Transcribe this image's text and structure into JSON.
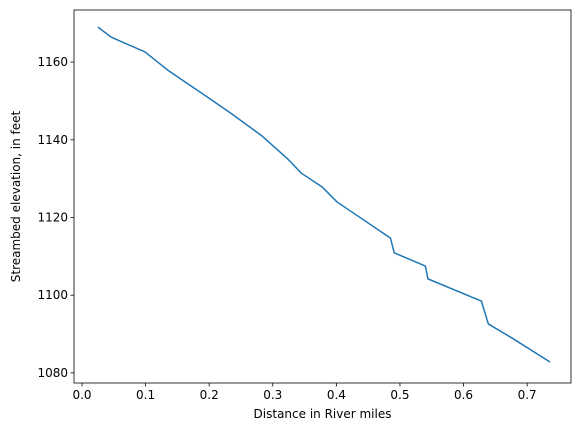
{
  "chart_data": {
    "type": "line",
    "x_label": "Distance in River miles",
    "y_label": "Streambed elevation, in feet",
    "x": [
      0.025,
      0.046,
      0.099,
      0.135,
      0.197,
      0.236,
      0.283,
      0.322,
      0.345,
      0.378,
      0.401,
      0.485,
      0.491,
      0.54,
      0.544,
      0.628,
      0.639,
      0.676,
      0.736
    ],
    "series": [
      {
        "color": "#1f77b4",
        "values": [
          1169.0,
          1166.4,
          1162.6,
          1157.9,
          1151.0,
          1146.6,
          1141.0,
          1135.3,
          1131.4,
          1127.8,
          1124.0,
          1114.7,
          1110.9,
          1107.5,
          1104.2,
          1098.5,
          1092.6,
          1089.0,
          1082.8
        ]
      }
    ],
    "xlim": [
      -0.0126,
      0.769
    ],
    "ylim": [
      1077.4,
      1173.4
    ],
    "xticks": [
      {
        "value": 0,
        "label": "0.0"
      },
      0.1,
      0.2,
      0.3,
      0.4,
      0.5,
      0.6,
      0.7
    ],
    "yticks": [
      1080,
      1100,
      1120,
      1140,
      1160
    ],
    "grid": false
  }
}
